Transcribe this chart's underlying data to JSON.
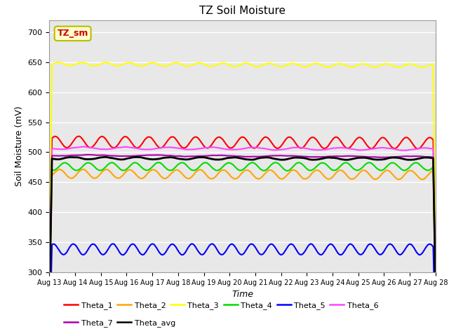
{
  "title": "TZ Soil Moisture",
  "xlabel": "Time",
  "ylabel": "Soil Moisture (mV)",
  "ylim": [
    300,
    720
  ],
  "yticks": [
    300,
    350,
    400,
    450,
    500,
    550,
    600,
    650,
    700
  ],
  "num_days": 15,
  "num_points": 1500,
  "background_color": "#e8e8e8",
  "fig_bg": "#ffffff",
  "series": {
    "Theta_1": {
      "color": "#ff0000",
      "mean": 517,
      "amp": 10,
      "freq": 1.1,
      "trend": -2,
      "lw": 1.5
    },
    "Theta_2": {
      "color": "#ffa500",
      "mean": 464,
      "amp": 8,
      "freq": 1.1,
      "trend": -2,
      "lw": 1.5
    },
    "Theta_3": {
      "color": "#ffff00",
      "mean": 647,
      "amp": 3,
      "freq": 1.1,
      "trend": -3,
      "lw": 1.5
    },
    "Theta_4": {
      "color": "#00dd00",
      "mean": 476,
      "amp": 7,
      "freq": 1.1,
      "trend": 0,
      "lw": 1.5
    },
    "Theta_5": {
      "color": "#0000ff",
      "mean": 338,
      "amp": 10,
      "freq": 1.3,
      "trend": 0,
      "lw": 1.5
    },
    "Theta_6": {
      "color": "#ff44ff",
      "mean": 507,
      "amp": 2,
      "freq": 0.6,
      "trend": -2,
      "lw": 1.5
    },
    "Theta_7": {
      "color": "#aa00aa",
      "mean": 495,
      "amp": 1,
      "freq": 0.4,
      "trend": -3,
      "lw": 1.5
    },
    "Theta_avg": {
      "color": "#000000",
      "mean": 490,
      "amp": 2,
      "freq": 0.8,
      "trend": -1,
      "lw": 2.0
    }
  },
  "annotation_text": "TZ_sm",
  "annotation_color": "#cc0000",
  "annotation_bg": "#ffffcc",
  "annotation_border": "#bbbb00",
  "tick_labels": [
    "Aug 13",
    "Aug 14",
    "Aug 15",
    "Aug 16",
    "Aug 17",
    "Aug 18",
    "Aug 19",
    "Aug 20",
    "Aug 21",
    "Aug 22",
    "Aug 23",
    "Aug 24",
    "Aug 25",
    "Aug 26",
    "Aug 27",
    "Aug 28"
  ],
  "tick_fontsize": 7,
  "ytick_fontsize": 8,
  "ylabel_fontsize": 9,
  "xlabel_fontsize": 9,
  "title_fontsize": 11
}
